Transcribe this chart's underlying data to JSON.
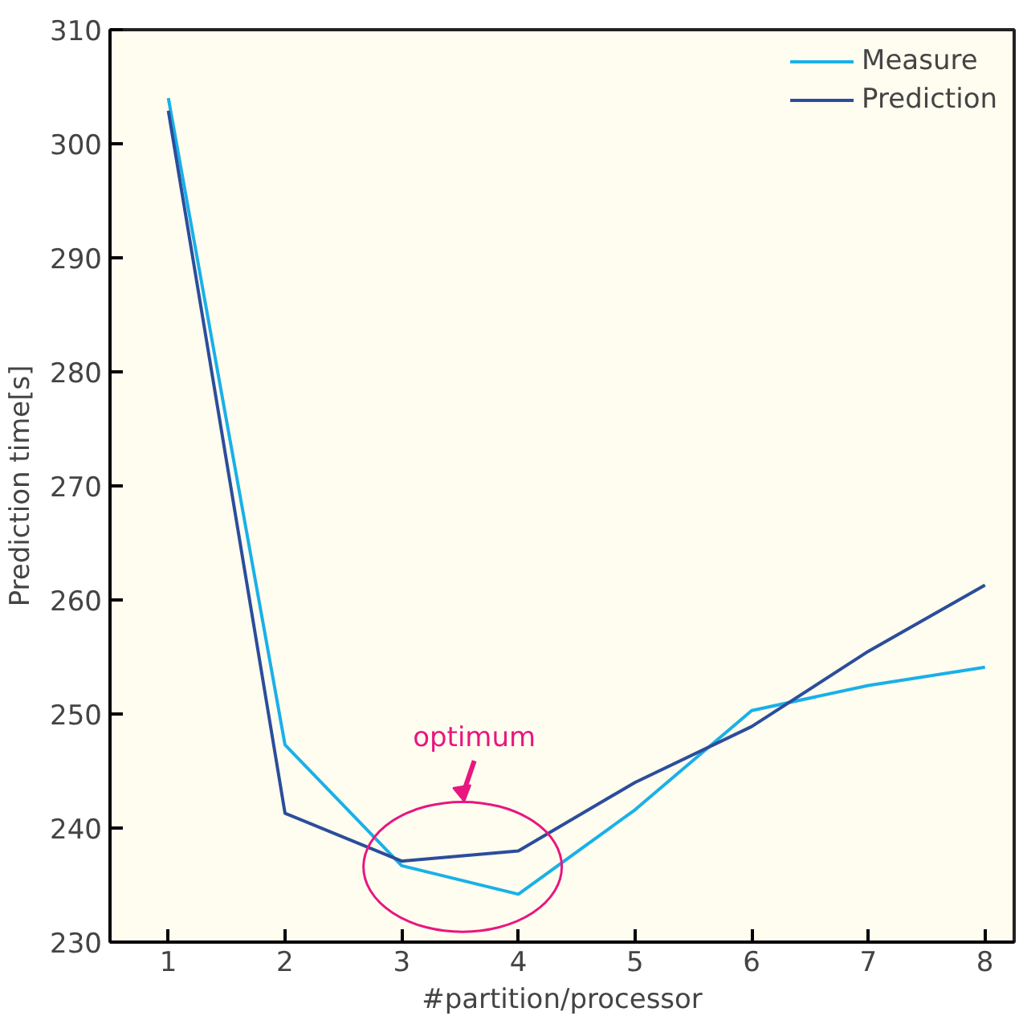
{
  "chart_data": {
    "type": "line",
    "xlabel": "#partition/processor",
    "ylabel": "Prediction time[s]",
    "x": [
      1,
      2,
      3,
      4,
      5,
      6,
      7,
      8
    ],
    "series": [
      {
        "name": "Measure",
        "color": "#1ab0e8",
        "values": [
          304.0,
          247.3,
          236.7,
          234.2,
          241.6,
          250.3,
          252.5,
          254.1
        ]
      },
      {
        "name": "Prediction",
        "color": "#2b4d9b",
        "values": [
          302.9,
          241.3,
          237.1,
          238.0,
          244.0,
          248.9,
          255.5,
          261.3
        ]
      }
    ],
    "xlim": [
      0.5,
      8.25
    ],
    "ylim": [
      230,
      310
    ],
    "xticks": [
      1,
      2,
      3,
      4,
      5,
      6,
      7,
      8
    ],
    "yticks": [
      230,
      240,
      250,
      260,
      270,
      280,
      290,
      300,
      310
    ],
    "annotations": [
      "optimum"
    ],
    "legend": "top right",
    "grid": false,
    "marker": "none",
    "line_style": "solid"
  }
}
